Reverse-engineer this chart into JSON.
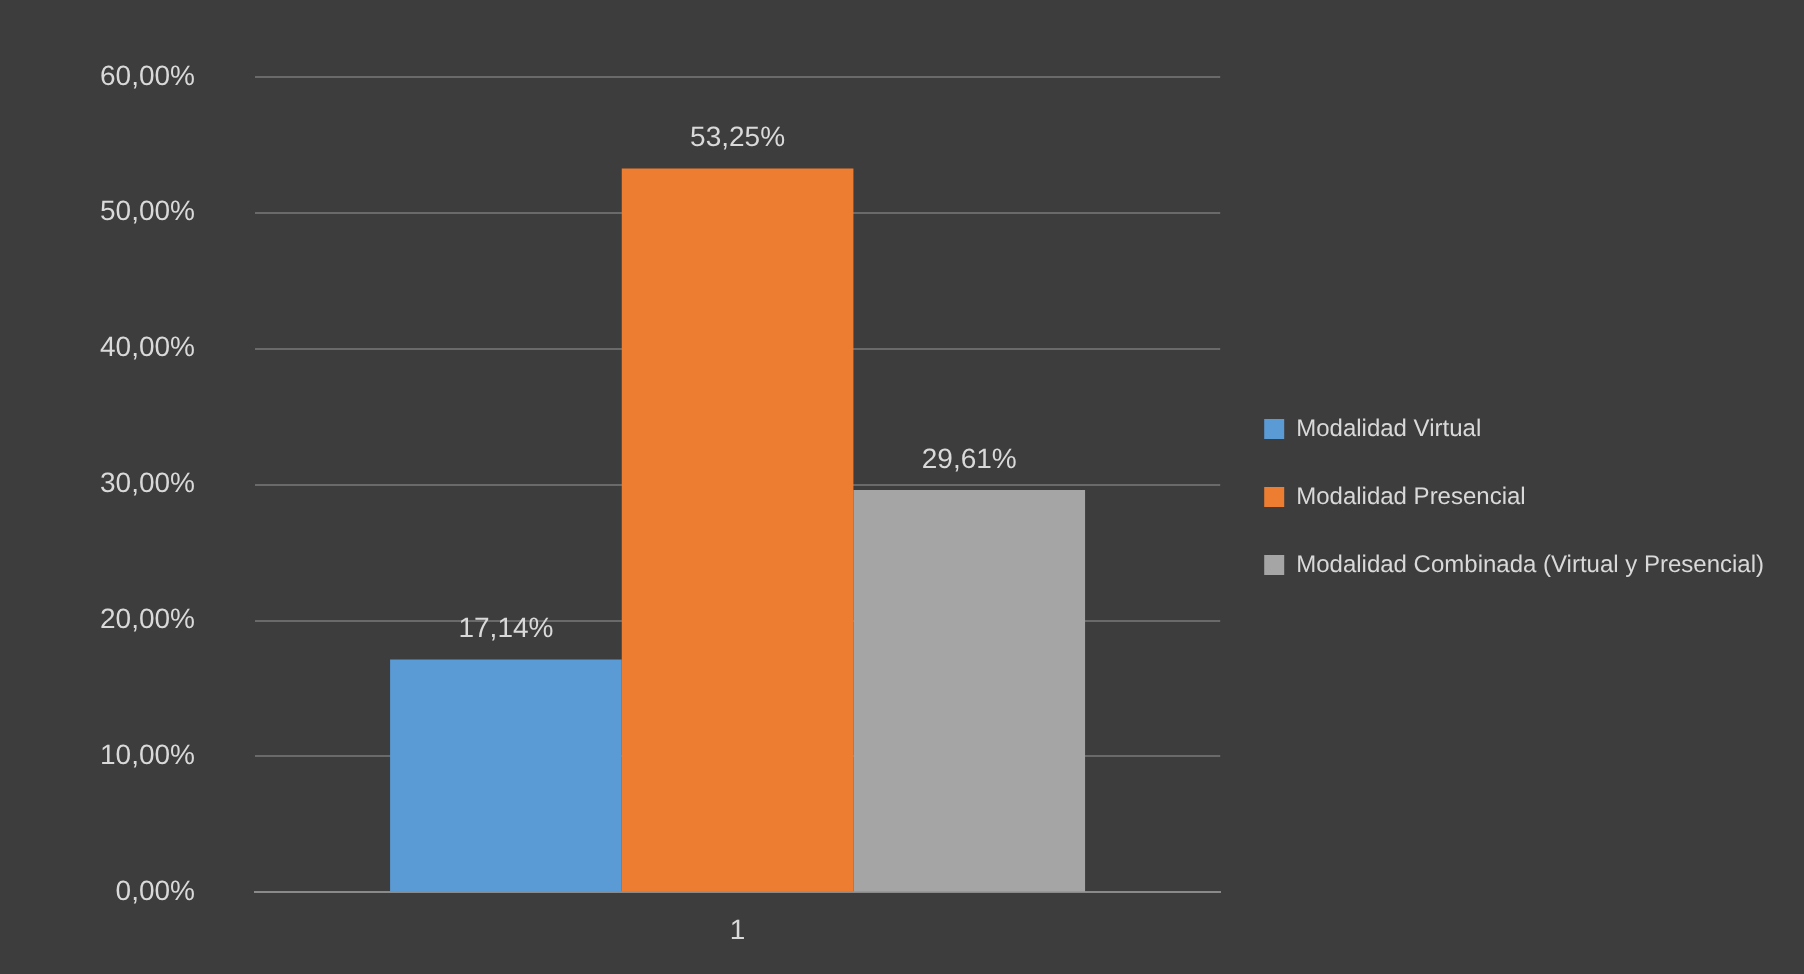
{
  "chart_data": {
    "type": "bar",
    "categories": [
      "1"
    ],
    "series": [
      {
        "name": "Modalidad Virtual",
        "color": "#5b9bd5",
        "values": [
          17.14
        ],
        "value_labels": [
          "17,14%"
        ]
      },
      {
        "name": "Modalidad Presencial",
        "color": "#ed7d31",
        "values": [
          53.25
        ],
        "value_labels": [
          "53,25%"
        ]
      },
      {
        "name": "Modalidad Combinada (Virtual y Presencial)",
        "color": "#a5a5a5",
        "values": [
          29.61
        ],
        "value_labels": [
          "29,61%"
        ]
      }
    ],
    "ylim": [
      0,
      60
    ],
    "yticks": [
      {
        "value": 0,
        "label": "0,00%"
      },
      {
        "value": 10,
        "label": "10,00%"
      },
      {
        "value": 20,
        "label": "20,00%"
      },
      {
        "value": 30,
        "label": "30,00%"
      },
      {
        "value": 40,
        "label": "40,00%"
      },
      {
        "value": 50,
        "label": "50,00%"
      },
      {
        "value": 60,
        "label": "60,00%"
      }
    ],
    "grid": "y",
    "legend": "right"
  }
}
